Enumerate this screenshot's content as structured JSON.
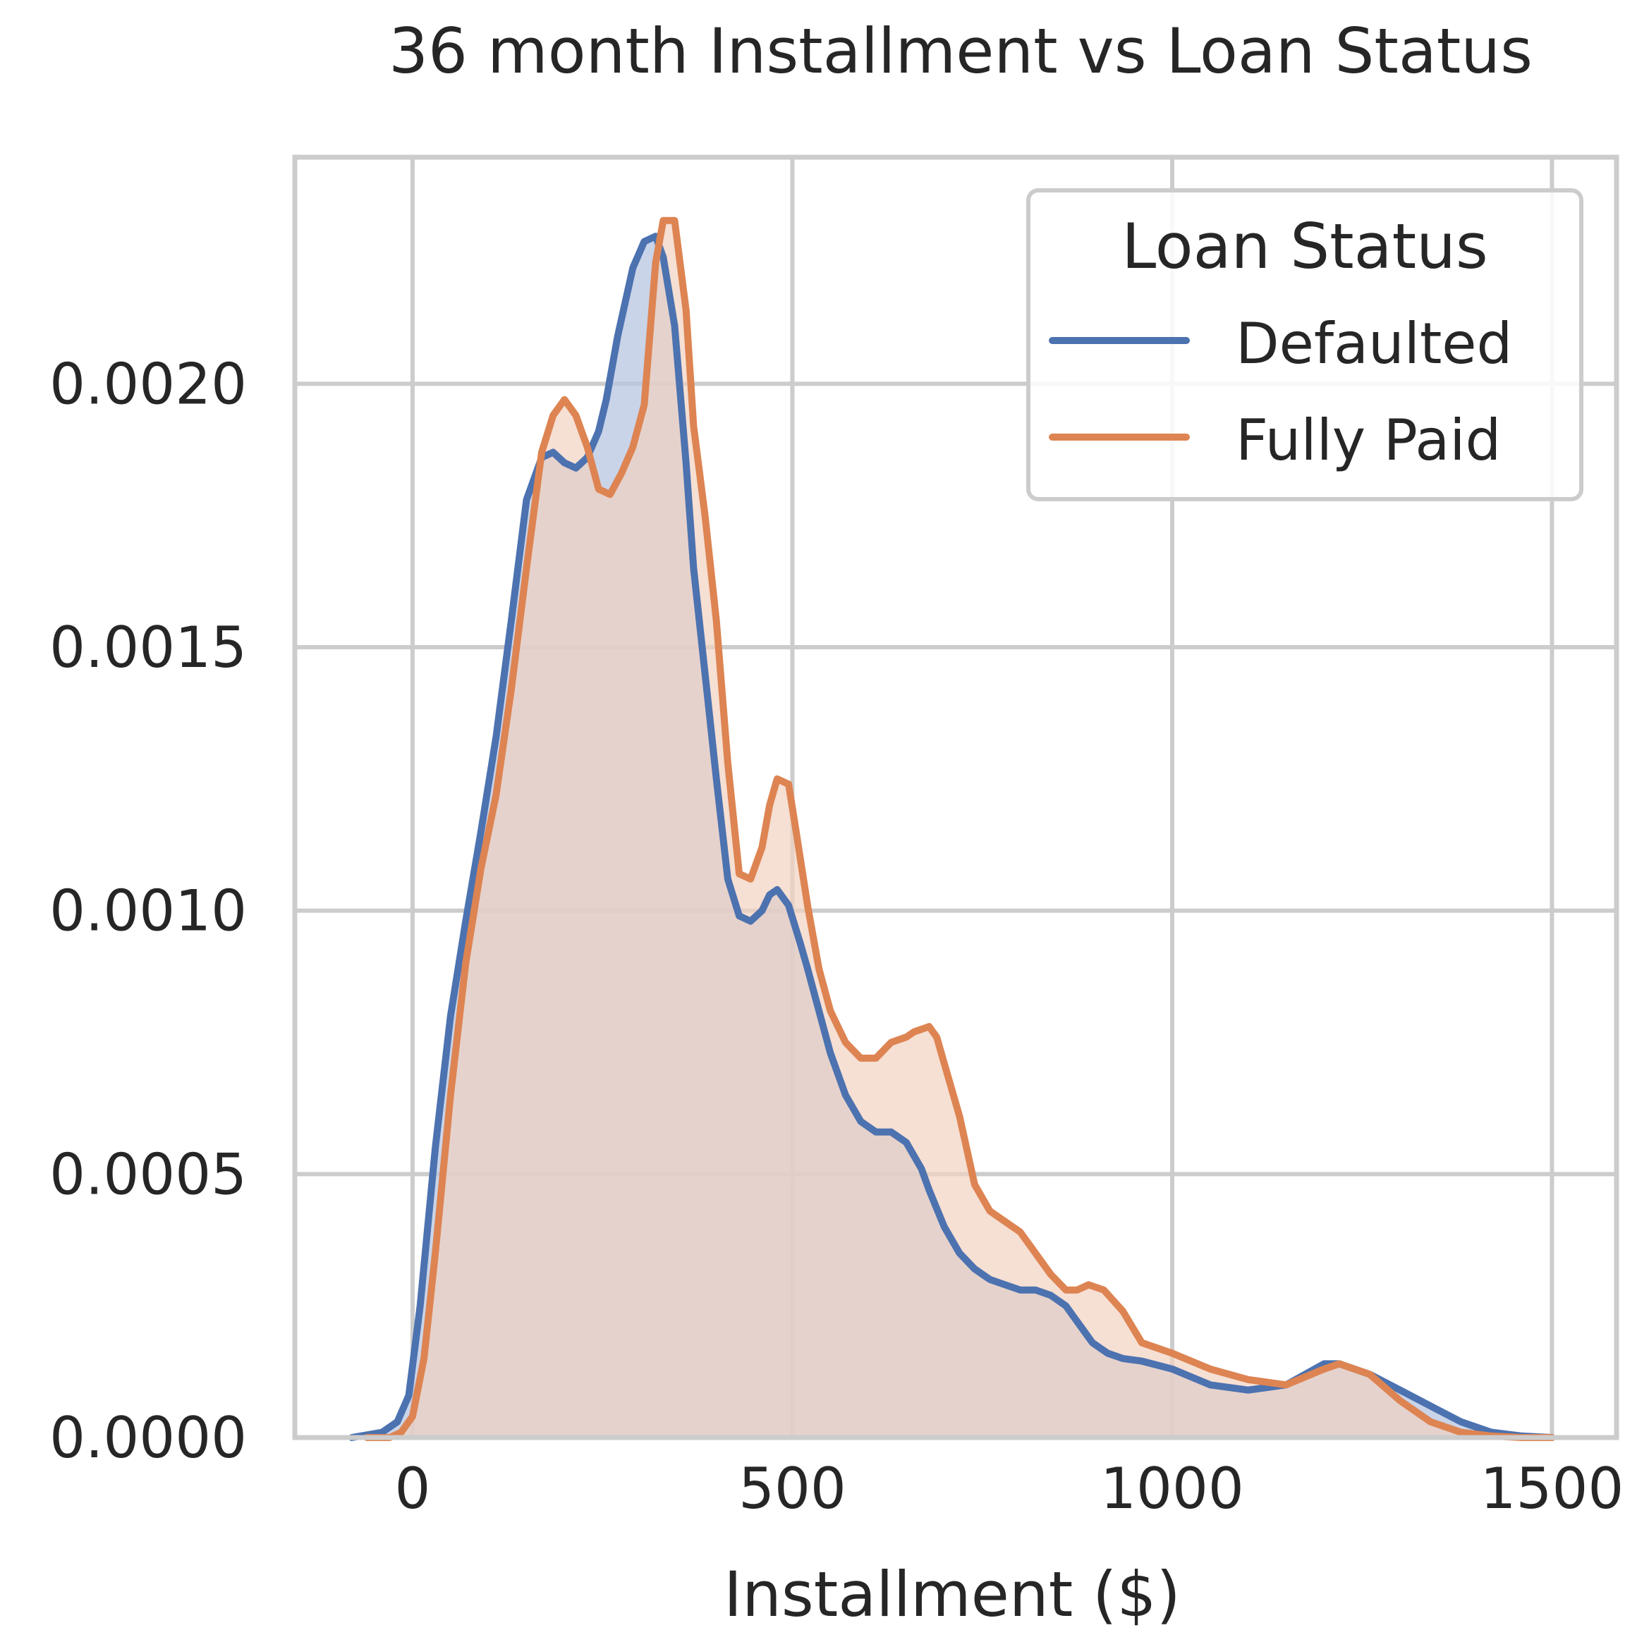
{
  "chart_data": {
    "type": "area",
    "title": "36 month Installment vs Loan Status",
    "xlabel": "Installment ($)",
    "ylabel": "",
    "xlim": [
      -155,
      1585
    ],
    "ylim": [
      0,
      0.00243
    ],
    "xticks": [
      0,
      500,
      1000,
      1500
    ],
    "xtick_labels": [
      "0",
      "500",
      "1000",
      "1500"
    ],
    "yticks": [
      0,
      0.0005,
      0.001,
      0.0015,
      0.002
    ],
    "ytick_labels": [
      "0.0000",
      "0.0005",
      "0.0010",
      "0.0015",
      "0.0020"
    ],
    "grid": true,
    "legend": {
      "title": "Loan Status",
      "placement": "top-right"
    },
    "series": [
      {
        "name": "Defaulted",
        "color": "#4c72b0",
        "fill": "#b8c6e0",
        "x": [
          -80,
          -40,
          -20,
          -5,
          10,
          30,
          50,
          70,
          90,
          110,
          130,
          150,
          170,
          185,
          200,
          215,
          230,
          245,
          255,
          270,
          290,
          305,
          320,
          330,
          345,
          360,
          370,
          385,
          400,
          415,
          430,
          445,
          460,
          470,
          480,
          495,
          510,
          520,
          535,
          550,
          570,
          590,
          610,
          630,
          650,
          670,
          680,
          700,
          720,
          740,
          760,
          780,
          800,
          820,
          840,
          860,
          875,
          895,
          915,
          935,
          960,
          1000,
          1050,
          1100,
          1150,
          1200,
          1220,
          1260,
          1300,
          1340,
          1380,
          1420,
          1460,
          1500
        ],
        "y": [
          0.0,
          1e-05,
          3e-05,
          8e-05,
          0.00025,
          0.00055,
          0.0008,
          0.00098,
          0.00115,
          0.00133,
          0.00155,
          0.00178,
          0.00186,
          0.00187,
          0.00185,
          0.00184,
          0.00186,
          0.00191,
          0.00197,
          0.00209,
          0.00222,
          0.00227,
          0.00228,
          0.00224,
          0.00211,
          0.00185,
          0.00165,
          0.00145,
          0.00125,
          0.00106,
          0.00099,
          0.00098,
          0.001,
          0.00103,
          0.00104,
          0.00101,
          0.00094,
          0.00089,
          0.00081,
          0.00073,
          0.00065,
          0.0006,
          0.00058,
          0.00058,
          0.00056,
          0.00051,
          0.00047,
          0.0004,
          0.00035,
          0.00032,
          0.0003,
          0.00029,
          0.00028,
          0.00028,
          0.00027,
          0.00025,
          0.00022,
          0.00018,
          0.00016,
          0.00015,
          0.000145,
          0.00013,
          0.0001,
          9e-05,
          0.0001,
          0.00014,
          0.00014,
          0.00012,
          9e-05,
          6e-05,
          3e-05,
          1e-05,
          3e-06,
          0.0
        ]
      },
      {
        "name": "Fully Paid",
        "color": "#dd8452",
        "fill": "#f2d2c0",
        "x": [
          -60,
          -30,
          -15,
          0,
          15,
          30,
          50,
          70,
          90,
          110,
          130,
          150,
          170,
          185,
          200,
          215,
          230,
          245,
          260,
          275,
          290,
          305,
          320,
          330,
          345,
          360,
          370,
          385,
          400,
          415,
          430,
          445,
          460,
          470,
          480,
          495,
          505,
          520,
          535,
          550,
          570,
          590,
          610,
          630,
          650,
          660,
          680,
          690,
          700,
          720,
          740,
          760,
          780,
          800,
          820,
          840,
          860,
          875,
          890,
          910,
          935,
          960,
          1000,
          1050,
          1100,
          1150,
          1200,
          1220,
          1260,
          1300,
          1340,
          1380,
          1420,
          1460,
          1500
        ],
        "y": [
          0.0,
          0.0,
          1e-05,
          4e-05,
          0.00015,
          0.00035,
          0.00065,
          0.0009,
          0.00108,
          0.00122,
          0.00142,
          0.00165,
          0.00187,
          0.00194,
          0.00197,
          0.00194,
          0.00188,
          0.0018,
          0.00179,
          0.00183,
          0.00188,
          0.00196,
          0.00223,
          0.00231,
          0.00231,
          0.00214,
          0.00192,
          0.00175,
          0.00155,
          0.00128,
          0.00107,
          0.00106,
          0.00112,
          0.0012,
          0.00125,
          0.00124,
          0.00115,
          0.00101,
          0.00089,
          0.00081,
          0.00075,
          0.00072,
          0.00072,
          0.00075,
          0.00076,
          0.00077,
          0.00078,
          0.00076,
          0.00071,
          0.00061,
          0.00048,
          0.00043,
          0.00041,
          0.00039,
          0.00035,
          0.00031,
          0.00028,
          0.00028,
          0.00029,
          0.00028,
          0.00024,
          0.00018,
          0.00016,
          0.00013,
          0.00011,
          0.0001,
          0.00013,
          0.00014,
          0.00012,
          7e-05,
          3e-05,
          1e-05,
          3e-06,
          0.0,
          0.0
        ]
      }
    ]
  }
}
